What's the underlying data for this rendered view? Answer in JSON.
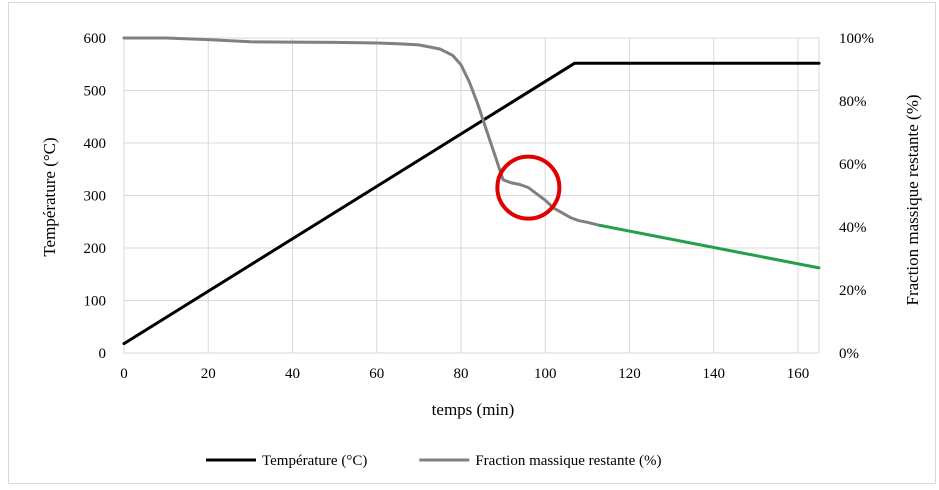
{
  "chart_data": {
    "type": "line",
    "xlabel": "temps (min)",
    "ylabel_left": "Température (°C)",
    "ylabel_right": "Fraction massique restante (%)",
    "x_ticks": [
      "0",
      "20",
      "40",
      "60",
      "80",
      "100",
      "120",
      "140",
      "160"
    ],
    "y_left_ticks": [
      "0",
      "100",
      "200",
      "300",
      "400",
      "500",
      "600"
    ],
    "y_right_ticks": [
      "0%",
      "20%",
      "40%",
      "60%",
      "80%",
      "100%"
    ],
    "xlim": [
      0,
      165
    ],
    "ylim_left": [
      0,
      600
    ],
    "ylim_right": [
      0,
      100
    ],
    "grid": true,
    "legend_position": "bottom",
    "series": [
      {
        "name": "Température (°C)",
        "axis": "left",
        "color": "#000000",
        "x": [
          0,
          107,
          165
        ],
        "y": [
          18,
          552,
          552
        ]
      },
      {
        "name": "Fraction massique restante (%)",
        "axis": "right",
        "color": "#808080",
        "x": [
          0,
          10,
          20,
          30,
          40,
          50,
          60,
          65,
          70,
          75,
          78,
          80,
          82,
          84,
          86,
          88,
          90,
          92,
          94,
          96,
          98,
          100,
          102,
          104,
          106,
          108,
          110,
          113
        ],
        "y": [
          100,
          100,
          99.5,
          98.8,
          98.7,
          98.6,
          98.4,
          98.2,
          97.8,
          96.5,
          94.5,
          91.5,
          86,
          79,
          71,
          63,
          55,
          54,
          53.5,
          52.5,
          50.5,
          48.5,
          46,
          44.5,
          43,
          42,
          41.5,
          40.5
        ]
      },
      {
        "name": "",
        "axis": "right",
        "color": "#22a04b",
        "x": [
          113,
          165
        ],
        "y": [
          40.5,
          27
        ]
      }
    ],
    "annotations": [
      {
        "type": "circle",
        "color": "#e00000",
        "x": 96,
        "y_left": 315
      }
    ]
  }
}
